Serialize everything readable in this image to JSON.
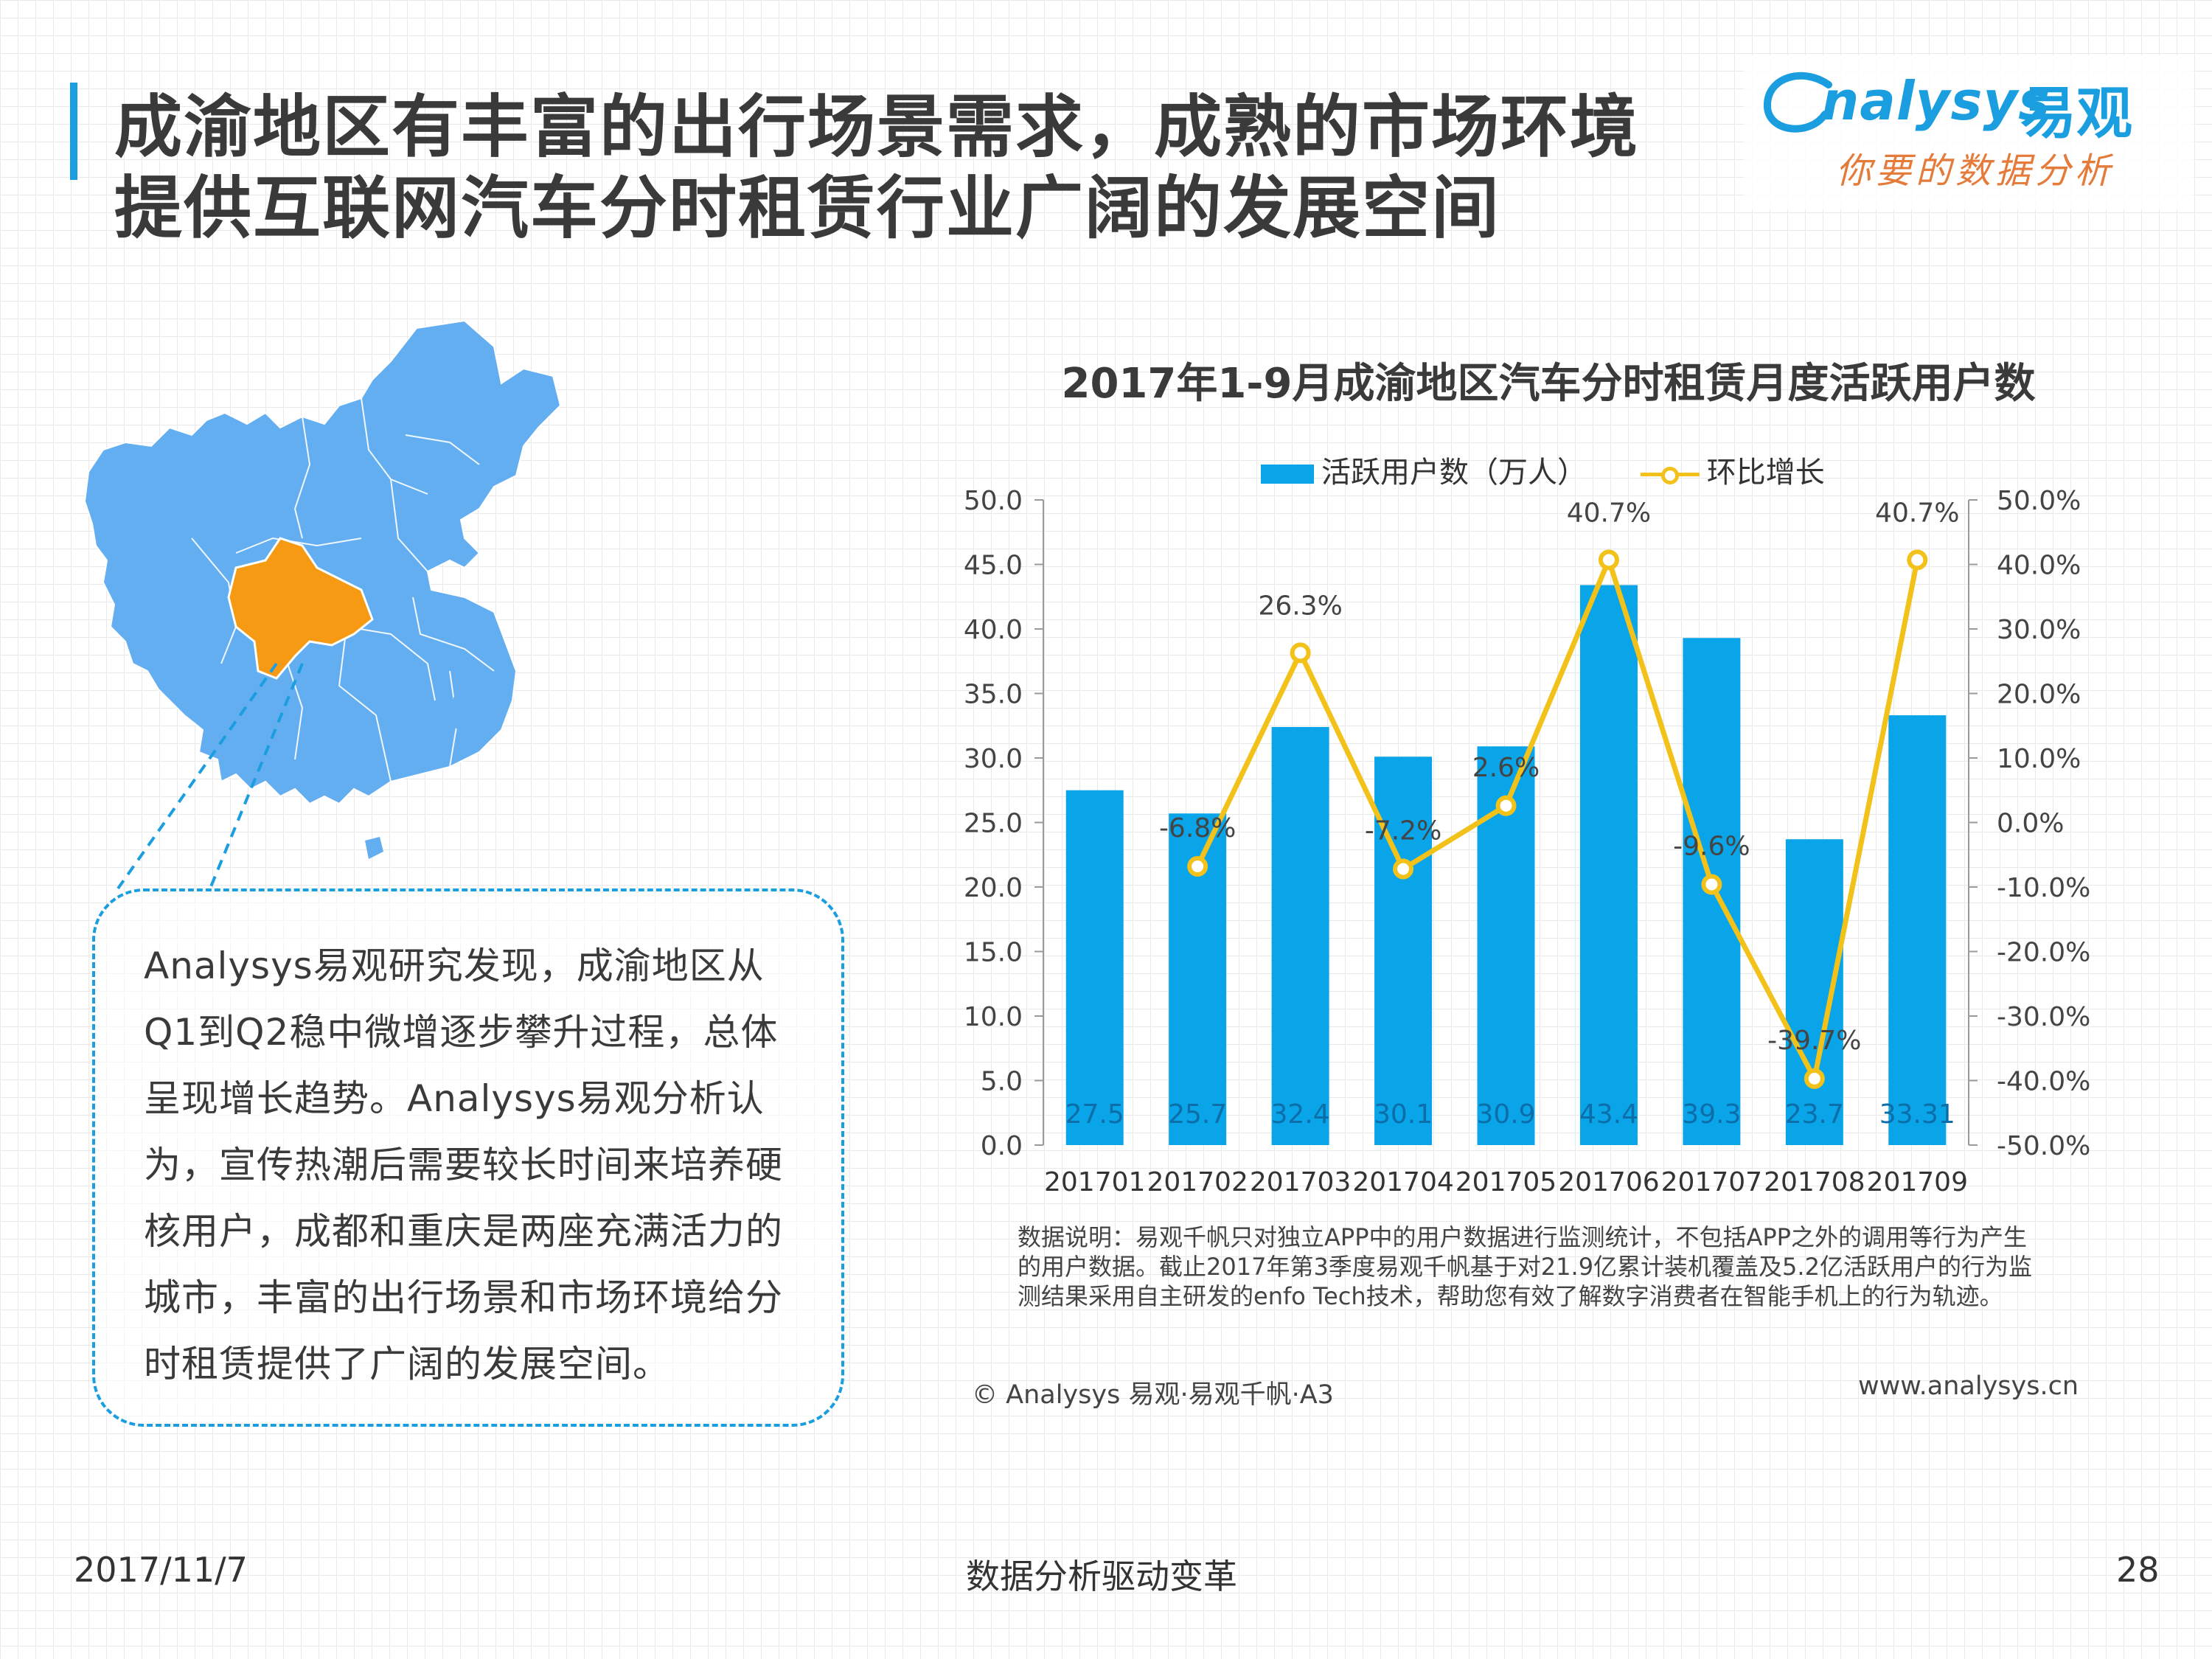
{
  "header": {
    "title_line1": "成渝地区有丰富的出行场景需求，成熟的市场环境",
    "title_line2": "提供互联网汽车分时租赁行业广阔的发展空间",
    "logo_brand": "nalysys",
    "logo_cn": "易观",
    "logo_slogan": "你要的数据分析"
  },
  "callout": {
    "paragraph": "Analysys易观研究发现，成渝地区从Q1到Q2稳中微增逐步攀升过程，总体呈现增长趋势。Analysys易观分析认为，宣传热潮后需要较长时间来培养硬核用户，成都和重庆是两座充满活力的城市，丰富的出行场景和市场环境给分时租赁提供了广阔的发展空间。"
  },
  "colors": {
    "accent": "#1a9ee0",
    "bar": "#0aa4e8",
    "line": "#f2c11a",
    "map_fill": "#63aef0",
    "map_highlight": "#f59a12",
    "callout_border": "#1a9ee0"
  },
  "chart_data": {
    "type": "bar",
    "title": "2017年1-9月成渝地区汽车分时租赁月度活跃用户数",
    "categories": [
      "201701",
      "201702",
      "201703",
      "201704",
      "201705",
      "201706",
      "201707",
      "201708",
      "201709"
    ],
    "series": [
      {
        "name": "活跃用户数（万人）",
        "type": "bar",
        "axis": "left",
        "values": [
          27.5,
          25.7,
          32.4,
          30.1,
          30.9,
          43.4,
          39.3,
          23.7,
          33.31
        ],
        "labels": [
          "27.5",
          "25.7",
          "32.4",
          "30.1",
          "30.9",
          "43.4",
          "39.3",
          "23.7",
          "33.31"
        ]
      },
      {
        "name": "环比增长",
        "type": "line",
        "axis": "right",
        "values": [
          null,
          -6.8,
          26.3,
          -7.2,
          2.6,
          40.7,
          -9.6,
          -39.7,
          40.7
        ],
        "labels": [
          "",
          "-6.8%",
          "26.3%",
          "-7.2%",
          "2.6%",
          "40.7%",
          "-9.6%",
          "-39.7%",
          "40.7%"
        ]
      }
    ],
    "ylim": [
      0,
      50
    ],
    "y_ticks": [
      "0.0",
      "5.0",
      "10.0",
      "15.0",
      "20.0",
      "25.0",
      "30.0",
      "35.0",
      "40.0",
      "45.0",
      "50.0"
    ],
    "y2lim": [
      -50,
      50
    ],
    "y2_ticks": [
      "-50.0%",
      "-40.0%",
      "-30.0%",
      "-20.0%",
      "-10.0%",
      "0.0%",
      "10.0%",
      "20.0%",
      "30.0%",
      "40.0%",
      "50.0%"
    ],
    "legend_position": "top",
    "grid": false
  },
  "note": "数据说明：易观千帆只对独立APP中的用户数据进行监测统计，不包括APP之外的调用等行为产生的用户数据。截止2017年第3季度易观千帆基于对21.9亿累计装机覆盖及5.2亿活跃用户的行为监测结果采用自主研发的enfo Tech技术，帮助您有效了解数字消费者在智能手机上的行为轨迹。",
  "source": "© Analysys 易观·易观千帆·A3",
  "website": "www.analysys.cn",
  "footer": {
    "date": "2017/11/7",
    "slogan": "数据分析驱动变革",
    "page": "28"
  }
}
